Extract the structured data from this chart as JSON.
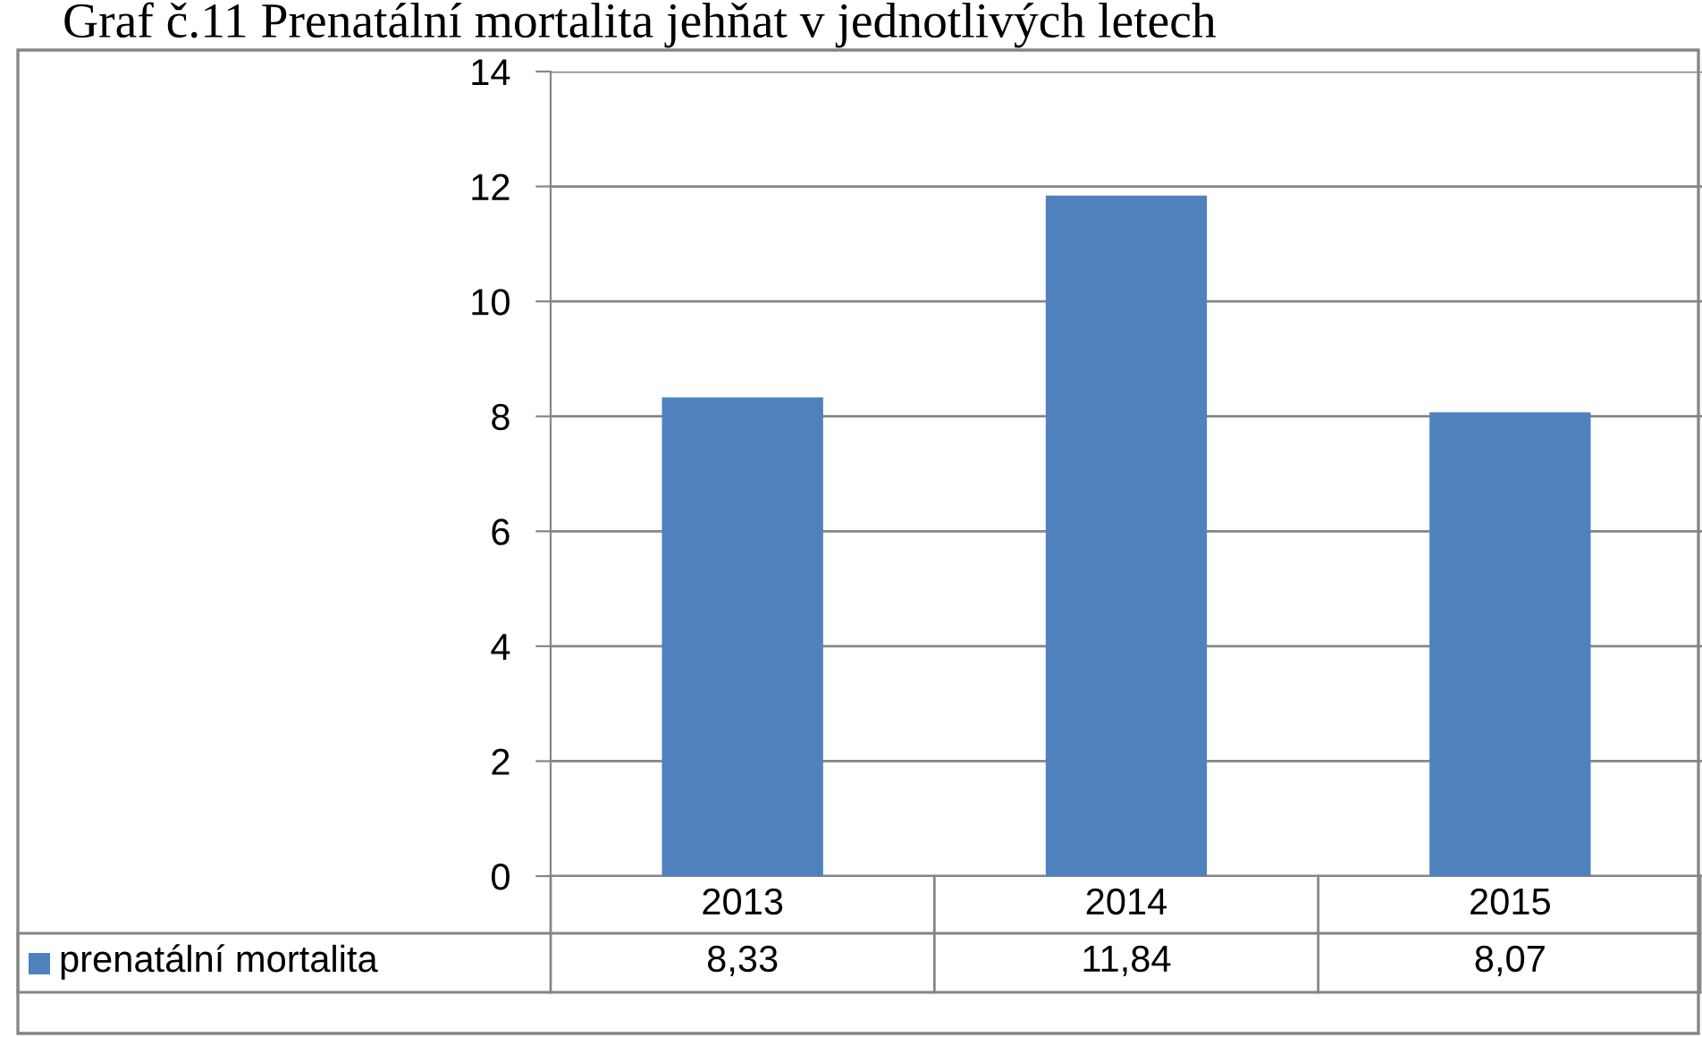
{
  "chart_data": {
    "type": "bar",
    "title": "Graf č.11 Prenatální mortalita jehňat v jednotlivých letech",
    "categories": [
      "2013",
      "2014",
      "2015"
    ],
    "series": [
      {
        "name": "prenatální mortalita",
        "color": "#4f81bd",
        "values": [
          8.33,
          11.84,
          8.07
        ],
        "value_labels": [
          "8,33",
          "11,84",
          "8,07"
        ]
      }
    ],
    "ylim": [
      0,
      14
    ],
    "yticks": [
      0,
      2,
      4,
      6,
      8,
      10,
      12,
      14
    ],
    "grid": "y",
    "legend": "bottom"
  }
}
